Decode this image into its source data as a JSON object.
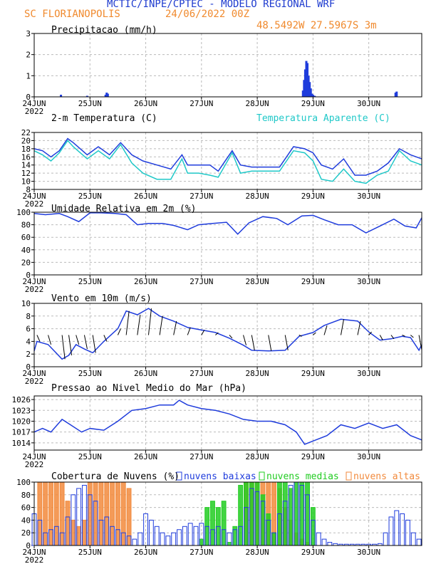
{
  "header": {
    "title": "MCTIC/INPE/CPTEC - MODELO REGIONAL WRF",
    "location": "SC FLORIANOPOLIS",
    "run": "24/06/2022 00Z",
    "coords": "48.5492W 27.5967S 3m"
  },
  "colors": {
    "title": "#1f3ccf",
    "location": "#f08a2e",
    "coords": "#f08a2e",
    "series_blue": "#1f3cdc",
    "series_cyan": "#1fc8c8",
    "cloud_low": "#1f3cdc",
    "cloud_mid": "#22cc22",
    "cloud_high": "#f28a3c",
    "grid": "#bbbbbb"
  },
  "x_axis": {
    "ticks": [
      "24JUN",
      "25JUN",
      "26JUN",
      "27JUN",
      "28JUN",
      "29JUN",
      "30JUN"
    ],
    "year": "2022",
    "range_days": [
      0,
      6.95
    ]
  },
  "chart_data": [
    {
      "id": "precip",
      "type": "bar",
      "title": "Precipitacao (mm/h)",
      "ylim": [
        0,
        3
      ],
      "yticks": [
        "0",
        "1",
        "2",
        "3"
      ],
      "x_unit": "days since 24JUN 00Z",
      "x": [
        0.48,
        0.95,
        1.28,
        1.3,
        1.32,
        4.82,
        4.84,
        4.86,
        4.88,
        4.9,
        4.92,
        4.94,
        4.96,
        4.98,
        5.0,
        5.03,
        6.48,
        6.5
      ],
      "values": [
        0.1,
        0.05,
        0.1,
        0.2,
        0.15,
        0.3,
        0.8,
        1.3,
        1.7,
        1.6,
        1.0,
        0.7,
        0.4,
        0.15,
        0.1,
        0.05,
        0.2,
        0.25
      ],
      "grid": true
    },
    {
      "id": "temp",
      "type": "line",
      "title": "2-m Temperatura (C)",
      "title2": "Temperatura Aparente (C)",
      "ylim": [
        8,
        22
      ],
      "yticks": [
        "8",
        "10",
        "12",
        "14",
        "16",
        "18",
        "20",
        "22"
      ],
      "series": [
        {
          "name": "2-m Temperatura (C)",
          "color": "series_blue",
          "x": [
            0,
            0.15,
            0.3,
            0.45,
            0.6,
            0.7,
            0.95,
            1.15,
            1.35,
            1.55,
            1.75,
            1.95,
            2.2,
            2.45,
            2.65,
            2.75,
            2.95,
            3.15,
            3.3,
            3.55,
            3.7,
            3.9,
            4.15,
            4.4,
            4.65,
            4.85,
            5.0,
            5.15,
            5.35,
            5.55,
            5.75,
            5.95,
            6.15,
            6.35,
            6.55,
            6.75,
            6.95
          ],
          "values": [
            18,
            17.5,
            16,
            17.5,
            20.5,
            19.5,
            16.5,
            18.5,
            16.5,
            19.5,
            16.5,
            15,
            14,
            13,
            16.5,
            14,
            14,
            14,
            12.5,
            17.5,
            14,
            13.5,
            13.5,
            13.5,
            18.5,
            18,
            17,
            14,
            13,
            15.5,
            11.5,
            11.5,
            12.5,
            14.5,
            18,
            16.5,
            15.5
          ]
        },
        {
          "name": "Temperatura Aparente (C)",
          "color": "series_cyan",
          "x": [
            0,
            0.15,
            0.3,
            0.45,
            0.6,
            0.7,
            0.95,
            1.15,
            1.35,
            1.55,
            1.75,
            1.95,
            2.2,
            2.45,
            2.65,
            2.75,
            2.95,
            3.15,
            3.3,
            3.55,
            3.7,
            3.9,
            4.15,
            4.4,
            4.65,
            4.85,
            5.0,
            5.15,
            5.35,
            5.55,
            5.75,
            5.95,
            6.15,
            6.35,
            6.55,
            6.75,
            6.95
          ],
          "values": [
            17.5,
            16.5,
            15,
            17,
            20,
            18.5,
            15.5,
            17.5,
            15.5,
            19,
            14.5,
            12,
            10.5,
            10.5,
            15.5,
            12,
            12,
            11.5,
            11,
            17,
            12,
            12.5,
            12.5,
            12.5,
            17.5,
            17,
            15,
            10.5,
            10,
            13,
            10,
            9.5,
            11.5,
            12.5,
            17.5,
            15,
            14
          ]
        }
      ],
      "grid": true
    },
    {
      "id": "humidity",
      "type": "line",
      "title": "Umidade Relativa em 2m (%)",
      "ylim": [
        0,
        100
      ],
      "yticks": [
        "0",
        "20",
        "40",
        "60",
        "80",
        "100"
      ],
      "series": [
        {
          "name": "Umidade Relativa em 2m (%)",
          "color": "series_blue",
          "x": [
            0,
            0.2,
            0.45,
            0.6,
            0.8,
            1.0,
            1.2,
            1.45,
            1.65,
            1.85,
            2.05,
            2.3,
            2.5,
            2.75,
            2.95,
            3.2,
            3.45,
            3.65,
            3.85,
            4.1,
            4.35,
            4.55,
            4.8,
            5.0,
            5.2,
            5.45,
            5.7,
            5.95,
            6.2,
            6.45,
            6.65,
            6.85,
            6.95
          ],
          "values": [
            98,
            96,
            98,
            93,
            85,
            99,
            99,
            98,
            96,
            80,
            82,
            82,
            79,
            72,
            80,
            82,
            84,
            65,
            83,
            93,
            90,
            80,
            94,
            95,
            88,
            80,
            80,
            67,
            78,
            89,
            78,
            75,
            91
          ]
        }
      ],
      "grid": true
    },
    {
      "id": "wind",
      "type": "line",
      "title": "Vento em 10m (m/s)",
      "ylim": [
        0,
        10
      ],
      "yticks": [
        "0",
        "2",
        "4",
        "6",
        "8",
        "10"
      ],
      "series": [
        {
          "name": "Vento em 10m (m/s)",
          "color": "series_blue",
          "x": [
            0,
            0.05,
            0.25,
            0.5,
            0.62,
            0.75,
            0.9,
            1.05,
            1.25,
            1.5,
            1.65,
            1.85,
            2.05,
            2.25,
            2.5,
            2.75,
            3.0,
            3.25,
            3.5,
            3.75,
            3.9,
            4.2,
            4.5,
            4.75,
            5.0,
            5.2,
            5.5,
            5.8,
            6.0,
            6.2,
            6.4,
            6.6,
            6.75,
            6.9,
            6.95
          ],
          "values": [
            2.5,
            4,
            3.5,
            1.2,
            1.8,
            3.5,
            2.8,
            2.2,
            4,
            6,
            8.8,
            8.2,
            9.2,
            8,
            7.2,
            6.2,
            5.8,
            5.4,
            4.5,
            3.4,
            2.6,
            2.5,
            2.6,
            4.8,
            5.4,
            6.5,
            7.5,
            7.2,
            5.5,
            4.2,
            4.4,
            4.8,
            4.6,
            2.6,
            3.5
          ]
        }
      ],
      "grid": true
    },
    {
      "id": "pressure",
      "type": "line",
      "title": "Pressao ao Nivel Medio do Mar (hPa)",
      "ylim": [
        1012,
        1027
      ],
      "yticks": [
        "1014",
        "1017",
        "1020",
        "1023",
        "1026"
      ],
      "series": [
        {
          "name": "Pressao ao Nivel Medio do Mar (hPa)",
          "color": "series_blue",
          "x": [
            0,
            0.15,
            0.3,
            0.5,
            0.65,
            0.85,
            1.0,
            1.25,
            1.5,
            1.75,
            2.0,
            2.25,
            2.5,
            2.6,
            2.75,
            3.0,
            3.25,
            3.5,
            3.75,
            4.0,
            4.25,
            4.5,
            4.7,
            4.85,
            5.0,
            5.25,
            5.5,
            5.75,
            6.0,
            6.25,
            6.5,
            6.75,
            6.95
          ],
          "values": [
            1017,
            1018,
            1017,
            1020.5,
            1019,
            1017,
            1018,
            1017.5,
            1020,
            1023,
            1023.5,
            1024.5,
            1024.5,
            1025.8,
            1024.5,
            1023.5,
            1023,
            1022,
            1020.5,
            1020,
            1020,
            1019,
            1017,
            1013.6,
            1014.5,
            1016,
            1019,
            1018,
            1019.5,
            1018,
            1019,
            1016,
            1014.8
          ]
        }
      ],
      "grid": true
    },
    {
      "id": "clouds",
      "type": "bar",
      "title": "Cobertura de Nuvens (%)",
      "legend": [
        "nuvens baixas",
        "nuvens medias",
        "nuvens altas"
      ],
      "ylim": [
        0,
        100
      ],
      "yticks": [
        "0",
        "20",
        "40",
        "60",
        "80",
        "100"
      ],
      "x_unit": "days since 24JUN 00Z",
      "series": [
        {
          "name": "nuvens baixas",
          "color": "cloud_low",
          "x": [
            0,
            0.1,
            0.2,
            0.3,
            0.4,
            0.5,
            0.6,
            0.7,
            0.8,
            0.9,
            1.0,
            1.1,
            1.2,
            1.3,
            1.4,
            1.5,
            1.6,
            1.7,
            1.8,
            1.9,
            2.0,
            2.1,
            2.2,
            2.3,
            2.4,
            2.5,
            2.6,
            2.7,
            2.8,
            2.9,
            3.0,
            3.1,
            3.2,
            3.3,
            3.4,
            3.5,
            3.6,
            3.7,
            3.8,
            3.9,
            4.0,
            4.1,
            4.2,
            4.3,
            4.4,
            4.5,
            4.6,
            4.7,
            4.8,
            4.9,
            5.0,
            5.1,
            5.2,
            5.3,
            5.4,
            5.5,
            5.6,
            5.7,
            5.8,
            5.9,
            6.0,
            6.1,
            6.2,
            6.3,
            6.4,
            6.5,
            6.6,
            6.7,
            6.8,
            6.9
          ],
          "values": [
            50,
            40,
            20,
            25,
            30,
            20,
            45,
            80,
            90,
            95,
            80,
            70,
            40,
            45,
            30,
            25,
            20,
            15,
            10,
            20,
            50,
            40,
            30,
            20,
            15,
            20,
            25,
            30,
            35,
            30,
            35,
            30,
            25,
            30,
            25,
            20,
            25,
            30,
            60,
            90,
            85,
            70,
            40,
            20,
            50,
            70,
            95,
            100,
            95,
            80,
            40,
            20,
            10,
            5,
            3,
            2,
            2,
            2,
            2,
            2,
            2,
            2,
            3,
            20,
            45,
            55,
            50,
            40,
            20,
            10
          ]
        },
        {
          "name": "nuvens medias",
          "color": "cloud_mid",
          "x": [
            3.0,
            3.1,
            3.2,
            3.3,
            3.4,
            3.5,
            3.6,
            3.7,
            3.8,
            3.9,
            4.0,
            4.1,
            4.2,
            4.3,
            4.4,
            4.5,
            4.6,
            4.7,
            4.8,
            4.9,
            5.0
          ],
          "values": [
            10,
            60,
            70,
            60,
            70,
            5,
            30,
            95,
            100,
            100,
            100,
            80,
            50,
            20,
            100,
            100,
            90,
            100,
            100,
            100,
            60
          ]
        },
        {
          "name": "nuvens altas",
          "color": "cloud_high",
          "x": [
            0.1,
            0.2,
            0.3,
            0.4,
            0.5,
            0.6,
            0.7,
            0.8,
            0.9,
            1.0,
            1.1,
            1.2,
            1.3,
            1.4,
            1.5,
            1.6,
            1.7,
            3.8,
            3.9,
            4.0,
            4.1,
            4.2,
            4.3,
            4.4,
            4.5,
            4.6,
            4.7,
            4.8,
            4.9
          ],
          "values": [
            100,
            100,
            100,
            100,
            100,
            70,
            40,
            30,
            40,
            100,
            100,
            100,
            100,
            100,
            100,
            100,
            90,
            100,
            100,
            100,
            100,
            100,
            100,
            90,
            60,
            40,
            20,
            10,
            5
          ]
        }
      ],
      "grid": true
    }
  ]
}
